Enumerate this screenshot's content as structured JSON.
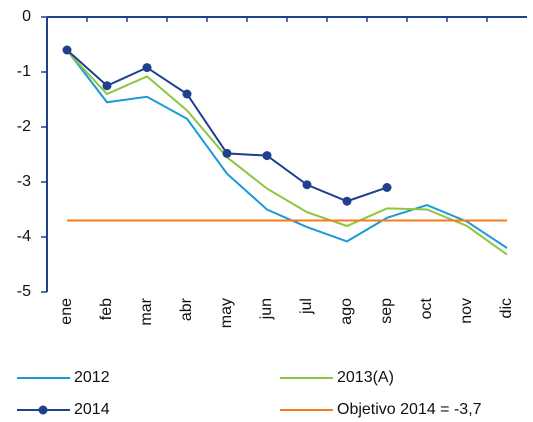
{
  "chart_data": {
    "type": "line",
    "categories": [
      "ene",
      "feb",
      "mar",
      "abr",
      "may",
      "jun",
      "jul",
      "ago",
      "sep",
      "oct",
      "nov",
      "dic"
    ],
    "series": [
      {
        "name": "2012",
        "color": "#1a9bd7",
        "values": [
          -0.6,
          -1.55,
          -1.45,
          -1.85,
          -2.85,
          -3.5,
          -3.82,
          -4.08,
          -3.65,
          -3.42,
          -3.72,
          -4.2
        ]
      },
      {
        "name": "2013(A)",
        "color": "#8dc63f",
        "values": [
          -0.62,
          -1.4,
          -1.08,
          -1.7,
          -2.55,
          -3.12,
          -3.55,
          -3.8,
          -3.48,
          -3.5,
          -3.8,
          -4.32
        ]
      },
      {
        "name": "2014",
        "color": "#1f3f8f",
        "markers": true,
        "values": [
          -0.6,
          -1.25,
          -0.92,
          -1.4,
          -2.48,
          -2.52,
          -3.05,
          -3.35,
          -3.1,
          null,
          null,
          null
        ]
      },
      {
        "name": "Objetivo 2014 = -3,7",
        "color": "#f47b20",
        "values": [
          -3.7,
          -3.7,
          -3.7,
          -3.7,
          -3.7,
          -3.7,
          -3.7,
          -3.7,
          -3.7,
          -3.7,
          -3.7,
          -3.7
        ]
      }
    ],
    "ylim": [
      -5,
      0
    ],
    "yticks": [
      0,
      -1,
      -2,
      -3,
      -4,
      -5
    ],
    "grid": false
  }
}
